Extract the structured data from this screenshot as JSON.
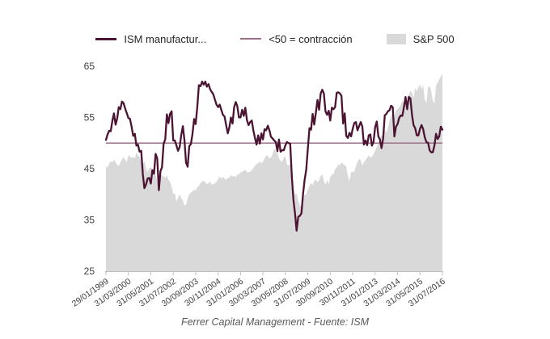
{
  "legend": {
    "ism_label": "ISM manufactur...",
    "contraction_label": "<50 = contracción",
    "sp500_label": "S&P 500"
  },
  "footer": {
    "caption": "Ferrer Capital Management - Fuente: ISM"
  },
  "colors": {
    "ism_line": "#4a1432",
    "contraction_line": "#9e6e88",
    "sp500_area": "#d9d9d9",
    "axis_text": "#404040",
    "tick_mark": "#bfbfbf"
  },
  "chart_data": {
    "type": "line",
    "title": "",
    "xlabel": "",
    "ylabel": "",
    "ylim": [
      25,
      65
    ],
    "y_ticks": [
      25,
      35,
      45,
      55,
      65
    ],
    "grid": false,
    "legend_position": "top",
    "x_start": "1999-01",
    "x_end": "2016-07",
    "interval": "monthly",
    "x_tick_labels": [
      "29/01/1999",
      "31/03/2000",
      "31/05/2001",
      "31/07/2002",
      "30/09/2003",
      "30/11/2004",
      "31/01/2006",
      "30/03/2007",
      "30/05/2008",
      "31/07/2009",
      "30/09/2010",
      "30/11/2011",
      "31/01/2013",
      "31/03/2014",
      "31/05/2015",
      "31/07/2016"
    ],
    "x_tick_interval_months": 14,
    "reference_line": {
      "value": 50,
      "label": "<50 = contracción"
    },
    "series": [
      {
        "name": "ISM manufactur...",
        "type": "line",
        "color": "#4a1432",
        "values": [
          50.6,
          51.7,
          52.4,
          52.3,
          54.3,
          55.8,
          53.6,
          54.8,
          57.0,
          56.6,
          58.1,
          57.8,
          56.7,
          55.8,
          54.9,
          54.7,
          53.2,
          51.4,
          51.8,
          49.5,
          49.7,
          48.3,
          48.5,
          43.9,
          41.2,
          41.9,
          43.1,
          43.2,
          42.1,
          44.7,
          44.0,
          47.9,
          47.0,
          40.8,
          44.5,
          45.3,
          49.9,
          50.7,
          55.6,
          53.9,
          55.7,
          56.2,
          50.5,
          50.5,
          49.5,
          48.5,
          49.2,
          51.6,
          53.3,
          50.5,
          46.2,
          45.4,
          49.4,
          49.8,
          51.8,
          54.7,
          53.7,
          57.0,
          61.3,
          61.1,
          62.0,
          61.4,
          62.0,
          61.0,
          61.5,
          60.5,
          60.0,
          59.5,
          58.5,
          57.5,
          57.0,
          57.5,
          56.5,
          55.5,
          55.2,
          53.5,
          51.9,
          53.0,
          55.0,
          53.8,
          57.0,
          58.0,
          57.2,
          55.0,
          55.0,
          56.5,
          55.3,
          56.9,
          54.5,
          53.5,
          54.1,
          54.4,
          52.5,
          51.0,
          49.7,
          51.5,
          49.9,
          51.9,
          50.7,
          52.7,
          52.5,
          53.4,
          52.5,
          51.2,
          50.9,
          50.5,
          50.2,
          48.4,
          50.7,
          48.3,
          48.6,
          48.6,
          49.6,
          50.2,
          50.0,
          49.9,
          43.5,
          38.9,
          36.2,
          32.9,
          35.6,
          35.8,
          36.3,
          40.1,
          42.8,
          44.8,
          48.9,
          52.9,
          52.6,
          55.7,
          53.6,
          55.9,
          58.4,
          56.5,
          59.6,
          60.4,
          59.7,
          56.2,
          55.5,
          56.3,
          54.4,
          56.9,
          56.6,
          57.0,
          59.8,
          59.9,
          59.7,
          59.2,
          53.8,
          55.8,
          51.4,
          51.0,
          52.0,
          51.3,
          52.8,
          53.9,
          54.1,
          52.5,
          53.3,
          54.1,
          53.2,
          49.7,
          50.5,
          49.6,
          51.5,
          51.7,
          49.5,
          50.2,
          53.1,
          54.2,
          51.3,
          50.7,
          49.0,
          50.9,
          55.4,
          55.7,
          56.2,
          56.4,
          57.3,
          57.0,
          51.3,
          53.2,
          53.7,
          54.9,
          55.4,
          55.3,
          57.1,
          59.0,
          56.6,
          59.0,
          58.7,
          55.5,
          53.5,
          52.9,
          51.5,
          51.5,
          52.8,
          53.5,
          52.7,
          51.1,
          50.2,
          50.1,
          48.6,
          48.2,
          48.2,
          49.5,
          51.8,
          50.8,
          51.3,
          53.2,
          52.6
        ]
      },
      {
        "name": "S&P 500",
        "type": "area",
        "color": "#d9d9d9",
        "scaled_to_left_axis": true,
        "values": [
          45.5,
          45.2,
          46.0,
          46.5,
          46.2,
          46.8,
          46.3,
          45.8,
          45.5,
          46.2,
          46.8,
          47.3,
          46.7,
          46.3,
          47.6,
          47.4,
          47.1,
          47.3,
          47.0,
          48.2,
          47.6,
          47.3,
          46.2,
          46.0,
          46.4,
          45.2,
          44.3,
          45.1,
          45.3,
          44.9,
          44.6,
          43.8,
          42.4,
          42.7,
          43.6,
          43.7,
          43.5,
          43.2,
          43.7,
          42.8,
          42.5,
          41.5,
          40.1,
          40.2,
          38.6,
          39.3,
          40.0,
          39.2,
          38.8,
          37.8,
          38.0,
          39.2,
          40.0,
          40.3,
          40.6,
          40.9,
          40.7,
          41.4,
          41.6,
          42.2,
          42.5,
          42.7,
          42.3,
          42.0,
          42.2,
          42.5,
          41.9,
          42.0,
          42.2,
          42.4,
          43.0,
          43.5,
          43.1,
          43.4,
          43.1,
          42.8,
          43.2,
          43.2,
          43.7,
          43.5,
          43.6,
          43.3,
          43.9,
          43.9,
          44.3,
          44.4,
          44.6,
          44.8,
          44.3,
          44.3,
          44.4,
          44.7,
          45.1,
          45.6,
          45.9,
          46.1,
          46.4,
          46.1,
          46.3,
          47.0,
          47.6,
          47.5,
          47.0,
          47.2,
          47.8,
          49.0,
          48.2,
          48.1,
          47.0,
          46.5,
          46.4,
          47.2,
          47.4,
          45.8,
          45.6,
          45.9,
          44.3,
          41.3,
          39.9,
          40.2,
          38.8,
          37.9,
          37.6,
          39.2,
          39.9,
          40.0,
          41.0,
          41.6,
          42.2,
          41.8,
          42.6,
          42.9,
          42.3,
          42.8,
          43.6,
          43.9,
          42.6,
          41.8,
          42.8,
          42.0,
          43.3,
          43.9,
          43.9,
          44.9,
          45.3,
          45.8,
          45.7,
          46.2,
          46.0,
          45.7,
          45.4,
          43.6,
          42.6,
          44.4,
          44.3,
          44.4,
          45.5,
          46.3,
          46.9,
          46.7,
          45.6,
          46.3,
          46.6,
          47.1,
          47.6,
          47.2,
          47.3,
          47.8,
          48.5,
          49.2,
          50.1,
          50.6,
          51.6,
          51.0,
          52.6,
          52.0,
          53.0,
          54.4,
          55.3,
          55.9,
          55.0,
          56.4,
          56.6,
          56.9,
          57.5,
          58.2,
          57.7,
          58.9,
          58.3,
          59.4,
          60.2,
          59.8,
          58.8,
          60.8,
          60.1,
          60.8,
          61.5,
          60.5,
          61.3,
          58.5,
          57.8,
          60.9,
          61.1,
          60.2,
          58.2,
          57.8,
          61.2,
          61.8,
          62.4,
          63.0,
          63.5
        ]
      }
    ]
  }
}
